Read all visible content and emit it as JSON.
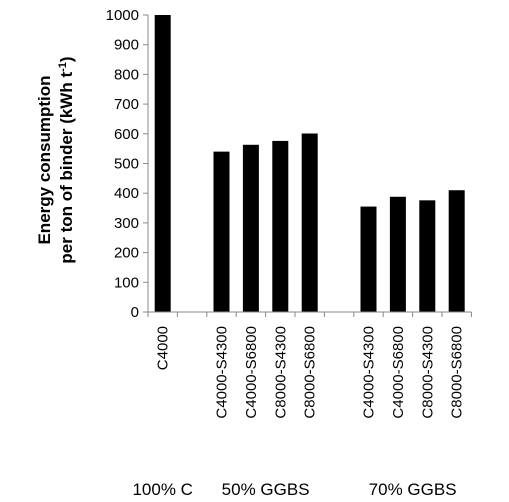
{
  "chart_data": {
    "type": "bar",
    "ylabel_line1": "Energy consumption",
    "ylabel_line2": "per ton of binder (kWh t",
    "ylabel_superscript": "-1",
    "ylabel_close": ")",
    "ylim": [
      0,
      1000
    ],
    "yticks": [
      0,
      100,
      200,
      300,
      400,
      500,
      600,
      700,
      800,
      900,
      1000
    ],
    "grid": false,
    "legend": "none",
    "bar_color": "#000000",
    "groups": [
      {
        "label": "100% C",
        "categories": [
          "C4000"
        ],
        "values": [
          1000
        ]
      },
      {
        "label": "50% GGBS",
        "categories": [
          "C4000-S4300",
          "C4000-S6800",
          "C8000-S4300",
          "C8000-S6800"
        ],
        "values": [
          540,
          563,
          576,
          601
        ]
      },
      {
        "label": "70% GGBS",
        "categories": [
          "C4000-S4300",
          "C4000-S6800",
          "C8000-S4300",
          "C8000-S6800"
        ],
        "values": [
          355,
          388,
          376,
          410
        ]
      }
    ]
  }
}
